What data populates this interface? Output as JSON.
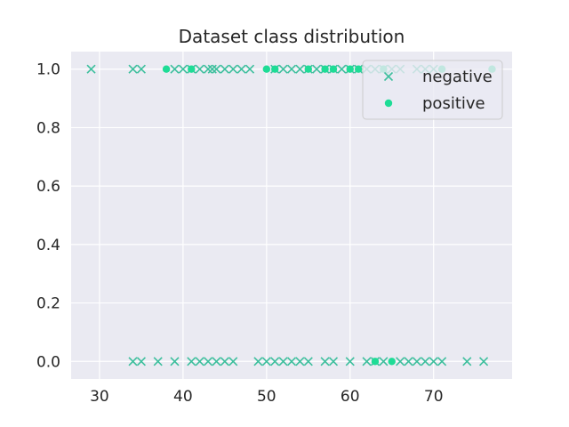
{
  "chart_data": {
    "type": "scatter",
    "title": "Dataset class distribution",
    "xlabel": "",
    "ylabel": "",
    "xlim": [
      26.6,
      79.4
    ],
    "ylim": [
      -0.06,
      1.06
    ],
    "x_ticks": [
      30,
      40,
      50,
      60,
      70
    ],
    "y_ticks": [
      0.0,
      0.2,
      0.4,
      0.6,
      0.8,
      1.0
    ],
    "y_tick_labels": [
      "0.0",
      "0.2",
      "0.4",
      "0.6",
      "0.8",
      "1.0"
    ],
    "grid": true,
    "legend_position": "top-right",
    "background": "#eaeaf2",
    "series": [
      {
        "name": "negative",
        "marker": "x",
        "color": "#3dbf9d",
        "points": [
          [
            29,
            1
          ],
          [
            34,
            1
          ],
          [
            35,
            1
          ],
          [
            39,
            1
          ],
          [
            40,
            1
          ],
          [
            41,
            1
          ],
          [
            42,
            1
          ],
          [
            43,
            1
          ],
          [
            43.5,
            1
          ],
          [
            44,
            1
          ],
          [
            45,
            1
          ],
          [
            46,
            1
          ],
          [
            47,
            1
          ],
          [
            48,
            1
          ],
          [
            51,
            1
          ],
          [
            52,
            1
          ],
          [
            53,
            1
          ],
          [
            54,
            1
          ],
          [
            55,
            1
          ],
          [
            56,
            1
          ],
          [
            57,
            1
          ],
          [
            58,
            1
          ],
          [
            59,
            1
          ],
          [
            60,
            1
          ],
          [
            61,
            1
          ],
          [
            62,
            1
          ],
          [
            63,
            1
          ],
          [
            64,
            1
          ],
          [
            65,
            1
          ],
          [
            66,
            1
          ],
          [
            68,
            1
          ],
          [
            69,
            1
          ],
          [
            70,
            1
          ],
          [
            34,
            0
          ],
          [
            35,
            0
          ],
          [
            37,
            0
          ],
          [
            39,
            0
          ],
          [
            41,
            0
          ],
          [
            42,
            0
          ],
          [
            43,
            0
          ],
          [
            44,
            0
          ],
          [
            45,
            0
          ],
          [
            46,
            0
          ],
          [
            49,
            0
          ],
          [
            50,
            0
          ],
          [
            51,
            0
          ],
          [
            52,
            0
          ],
          [
            53,
            0
          ],
          [
            54,
            0
          ],
          [
            55,
            0
          ],
          [
            57,
            0
          ],
          [
            58,
            0
          ],
          [
            60,
            0
          ],
          [
            62,
            0
          ],
          [
            63,
            0
          ],
          [
            64,
            0
          ],
          [
            66,
            0
          ],
          [
            67,
            0
          ],
          [
            68,
            0
          ],
          [
            69,
            0
          ],
          [
            70,
            0
          ],
          [
            71,
            0
          ],
          [
            74,
            0
          ],
          [
            76,
            0
          ]
        ]
      },
      {
        "name": "positive",
        "marker": "o",
        "color": "#1edc96",
        "points": [
          [
            38,
            1
          ],
          [
            41,
            1
          ],
          [
            50,
            1
          ],
          [
            51,
            1
          ],
          [
            55,
            1
          ],
          [
            57,
            1
          ],
          [
            58,
            1
          ],
          [
            60,
            1
          ],
          [
            61,
            1
          ],
          [
            64,
            1
          ],
          [
            71,
            1
          ],
          [
            77,
            1
          ],
          [
            63,
            0
          ],
          [
            65,
            0
          ]
        ]
      }
    ]
  }
}
